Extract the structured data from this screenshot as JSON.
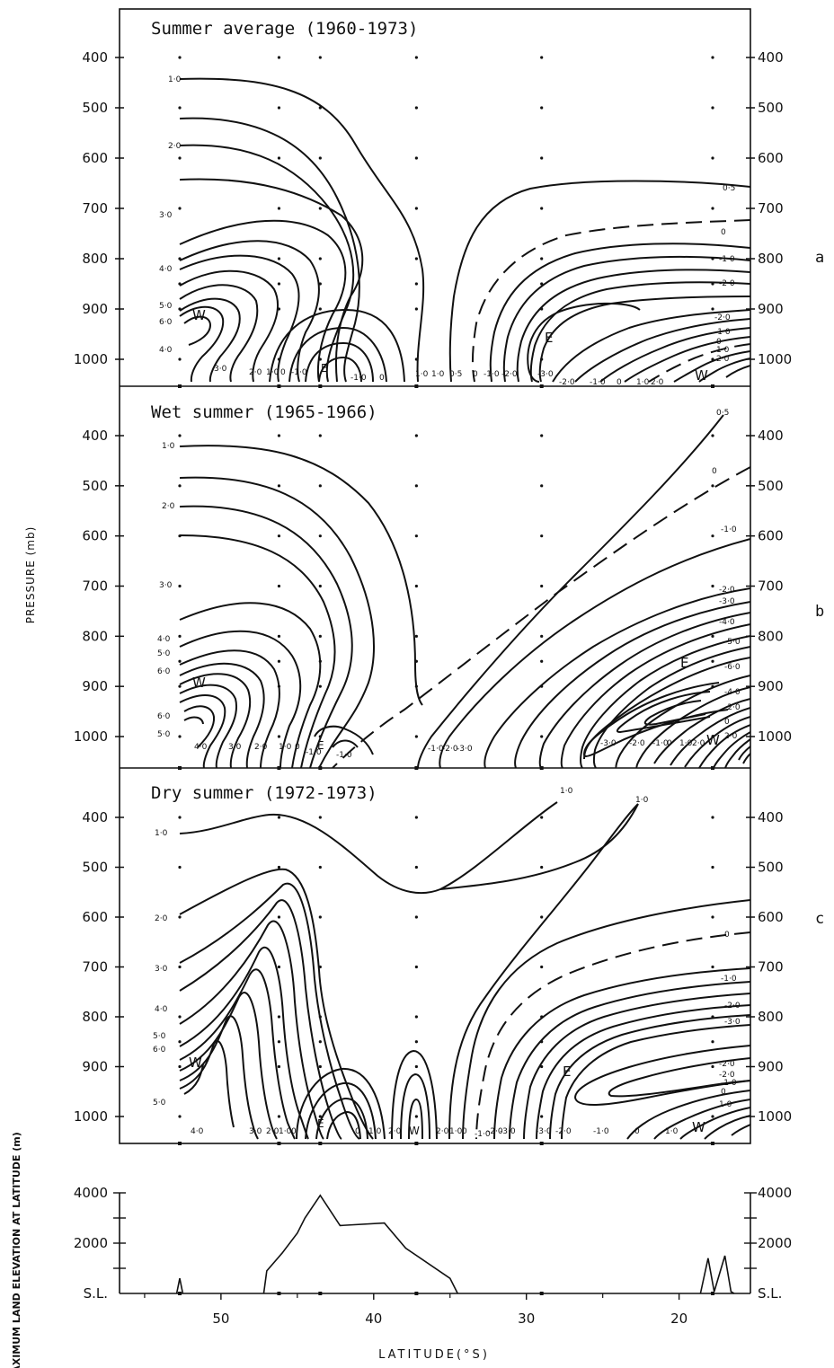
{
  "chart_data": {
    "type": "contour",
    "xlabel": "LATITUDE(°S)",
    "x_ticks": [
      "50",
      "40",
      "30",
      "20"
    ],
    "ylabel": "PRESSURE (mb)",
    "y_ticks": [
      "400",
      "500",
      "600",
      "700",
      "800",
      "900",
      "1000"
    ],
    "panels": [
      {
        "title": "Summer average (1960-1973)",
        "letter": "a",
        "markers": [
          "W",
          "E",
          "E",
          "W"
        ],
        "contour_labels": {
          "left": [
            "1·0",
            "2·0",
            "3·0",
            "4·0",
            "5·0",
            "6·0",
            "4·0"
          ],
          "right": [
            "0·5",
            "0",
            "-1·0",
            "-2·0",
            "-2·0",
            "-1·0",
            "0",
            "1·0",
            "2·0"
          ],
          "bottom": [
            "3·0",
            "2·0",
            "1·0",
            "0",
            "-1·0",
            "-1·0",
            "0",
            "1·0",
            "1·0",
            "0·5",
            "0",
            "-1·0",
            "-2·0",
            "-3·0",
            "-2·0",
            "-1·0",
            "0",
            "1·0",
            "2·0"
          ]
        }
      },
      {
        "title": "Wet summer (1965-1966)",
        "letter": "b",
        "markers": [
          "W",
          "E",
          "E",
          "W"
        ],
        "contour_labels": {
          "left": [
            "1·0",
            "2·0",
            "3·0",
            "4·0",
            "5·0",
            "6·0",
            "6·0",
            "5·0"
          ],
          "right": [
            "0·5",
            "0",
            "-1·0",
            "-2·0",
            "-3·0",
            "-4·0",
            "-5·0",
            "-6·0",
            "-4·0",
            "-2·0",
            "0",
            "2·0"
          ],
          "bottom": [
            "4·0",
            "3·0",
            "2·0",
            "1·0",
            "0",
            "-1·0",
            "-1·0",
            "-1·0",
            "-2·0",
            "-3·0",
            "-3·0",
            "-2·0",
            "-1·0",
            "0",
            "1·0",
            "2·0"
          ]
        }
      },
      {
        "title": "Dry summer (1972-1973)",
        "letter": "c",
        "markers": [
          "W",
          "E",
          "W",
          "E",
          "W"
        ],
        "contour_labels": {
          "left": [
            "1·0",
            "2·0",
            "3·0",
            "4·0",
            "5·0",
            "6·0",
            "5·0"
          ],
          "right": [
            "0",
            "-1·0",
            "-2·0",
            "-3·0",
            "-2·0",
            "-2·0",
            "-1·0",
            "0",
            "1·0"
          ],
          "top": [
            "1·0",
            "1·0"
          ],
          "bottom": [
            "4·0",
            "3·0",
            "2·0",
            "1·0",
            "0",
            "0",
            "1·0",
            "2·0",
            "2·0",
            "1·0",
            "0",
            "-1·0",
            "-2·0",
            "-3·0",
            "-3·0",
            "-2·0",
            "-1·0",
            "0",
            "1·0"
          ]
        }
      }
    ],
    "elevation_panel": {
      "ylabel": "MAXIMUM LAND ELEVATION AT LATITUDE (m)",
      "y_ticks": [
        "4000",
        "2000",
        "S.L."
      ],
      "ylim": [
        0,
        4000
      ],
      "x_range": [
        56,
        15
      ],
      "profile": [
        {
          "lat": 52.7,
          "elev": 600
        },
        {
          "lat": 47.0,
          "elev": 900
        },
        {
          "lat": 46.0,
          "elev": 1600
        },
        {
          "lat": 45.0,
          "elev": 2400
        },
        {
          "lat": 44.5,
          "elev": 3000
        },
        {
          "lat": 43.5,
          "elev": 3900
        },
        {
          "lat": 42.2,
          "elev": 2700
        },
        {
          "lat": 39.3,
          "elev": 2800
        },
        {
          "lat": 37.9,
          "elev": 1800
        },
        {
          "lat": 35.0,
          "elev": 600
        },
        {
          "lat": 34.5,
          "elev": 0
        },
        {
          "lat": 18.1,
          "elev": 1400
        },
        {
          "lat": 17.0,
          "elev": 1500
        }
      ]
    }
  }
}
